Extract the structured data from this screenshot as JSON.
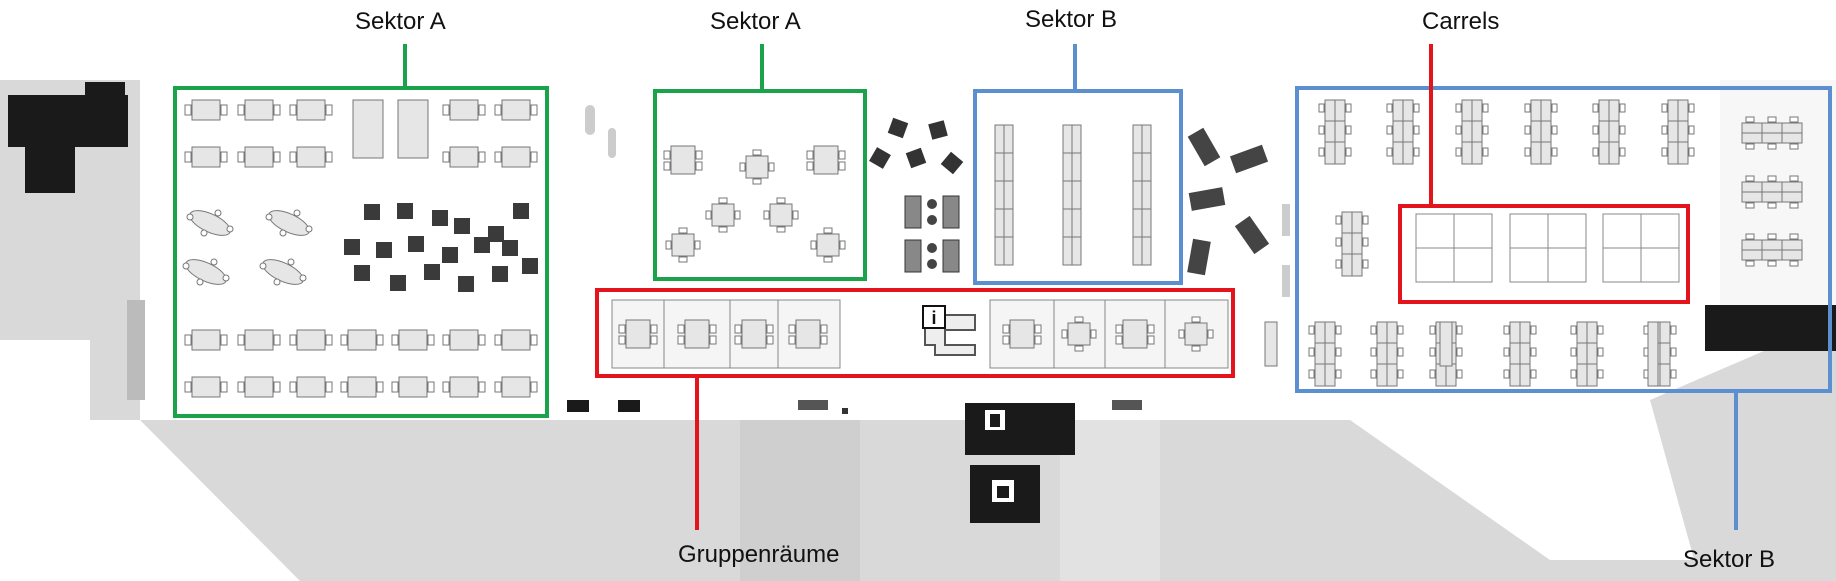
{
  "labels": {
    "sektor_a_left": "Sektor A",
    "sektor_a_mid": "Sektor A",
    "sektor_b_top": "Sektor B",
    "carrels": "Carrels",
    "gruppenraeume": "Gruppenräume",
    "sektor_b_bottom": "Sektor B"
  },
  "colors": {
    "sektor_a": "#1aa34a",
    "sektor_b": "#5b8fd0",
    "carrels_group": "#e3141b",
    "floor": "#d9d9d9",
    "wall": "#1a1a1a"
  },
  "icons": {
    "info": "info-icon",
    "elevator": "elevator-icon",
    "stairs": "stairs-icon"
  },
  "info_glyph": "i"
}
